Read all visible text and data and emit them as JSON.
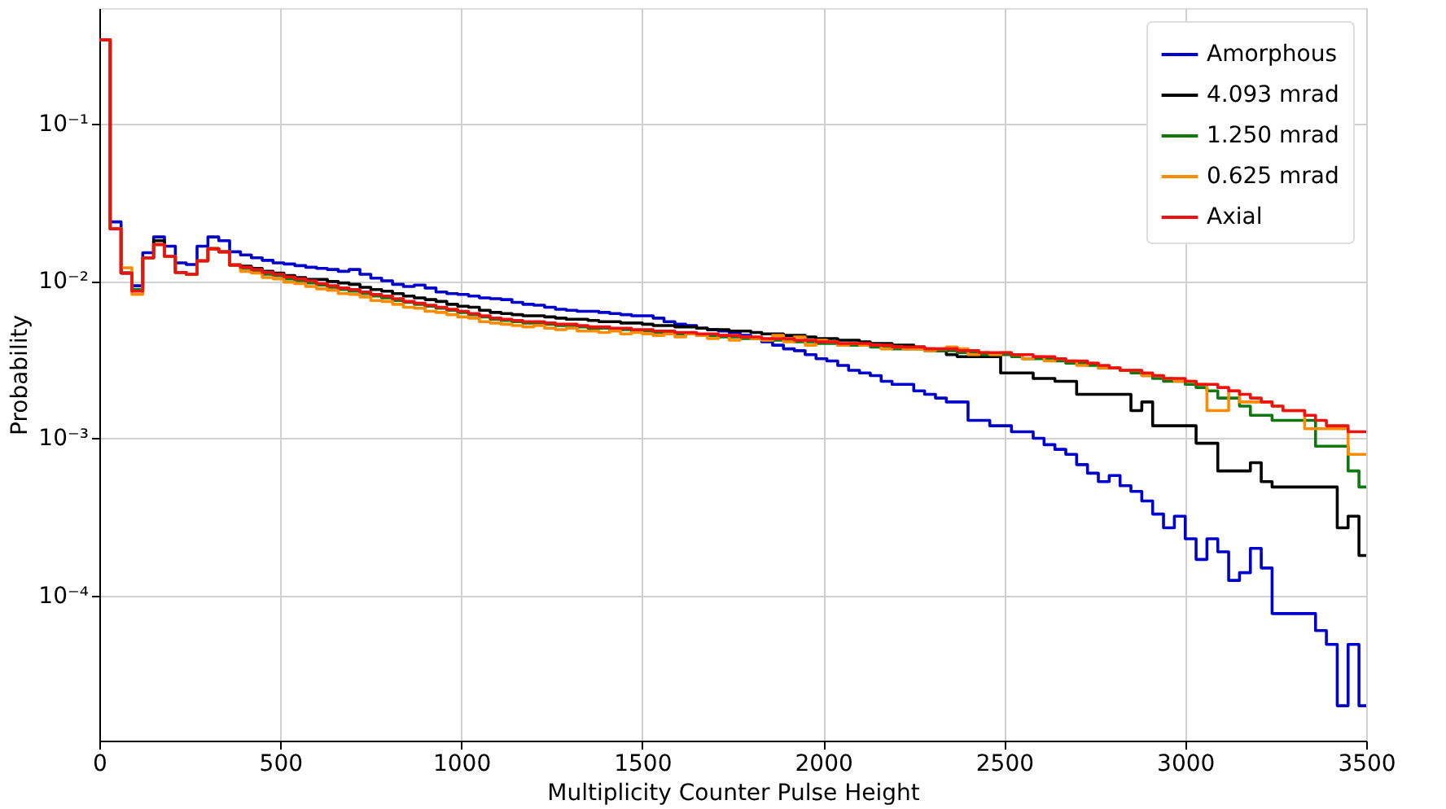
{
  "chart_data": {
    "type": "histogram",
    "xlabel": "Multiplicity Counter Pulse Height",
    "ylabel": "Probability",
    "bins": [
      0,
      30,
      60,
      90,
      120,
      150,
      180,
      210,
      240,
      270,
      300,
      330,
      360,
      390,
      420,
      450,
      480,
      510,
      540,
      570,
      600,
      630,
      660,
      690,
      720,
      750,
      780,
      810,
      840,
      870,
      900,
      930,
      960,
      990,
      1020,
      1050,
      1080,
      1110,
      1140,
      1170,
      1200,
      1230,
      1260,
      1290,
      1320,
      1350,
      1380,
      1410,
      1440,
      1470,
      1500,
      1530,
      1560,
      1590,
      1620,
      1650,
      1680,
      1710,
      1740,
      1770,
      1800,
      1830,
      1860,
      1890,
      1920,
      1950,
      1980,
      2010,
      2040,
      2070,
      2100,
      2130,
      2160,
      2190,
      2220,
      2250,
      2280,
      2310,
      2340,
      2370,
      2400,
      2430,
      2460,
      2490,
      2520,
      2550,
      2580,
      2610,
      2640,
      2670,
      2700,
      2730,
      2760,
      2790,
      2820,
      2850,
      2880,
      2910,
      2940,
      2970,
      3000,
      3030,
      3060,
      3090,
      3120,
      3150,
      3180,
      3210,
      3240,
      3270,
      3300,
      3330,
      3360,
      3390,
      3420,
      3450,
      3480,
      3500
    ],
    "series": [
      {
        "name": "Amorphous",
        "color": "#0000cc",
        "values": [
          0.34,
          0.0237,
          0.0112,
          0.0093,
          0.0151,
          0.019,
          0.0166,
          0.013,
          0.0127,
          0.0166,
          0.019,
          0.018,
          0.0153,
          0.0146,
          0.014,
          0.0135,
          0.013,
          0.0128,
          0.0125,
          0.0122,
          0.012,
          0.0118,
          0.0115,
          0.0118,
          0.011,
          0.0104,
          0.01,
          0.0095,
          0.0092,
          0.0094,
          0.009,
          0.0085,
          0.0083,
          0.0082,
          0.008,
          0.0078,
          0.0077,
          0.0076,
          0.0073,
          0.0071,
          0.007,
          0.0068,
          0.0066,
          0.0065,
          0.0064,
          0.0064,
          0.0063,
          0.0062,
          0.0061,
          0.006,
          0.006,
          0.0058,
          0.0055,
          0.0053,
          0.0052,
          0.005,
          0.0049,
          0.0048,
          0.0047,
          0.0045,
          0.0043,
          0.0041,
          0.0039,
          0.0037,
          0.0036,
          0.0034,
          0.0032,
          0.0031,
          0.0029,
          0.0027,
          0.0026,
          0.0025,
          0.0023,
          0.0022,
          0.0022,
          0.002,
          0.0019,
          0.0018,
          0.0017,
          0.0017,
          0.0013,
          0.0013,
          0.0012,
          0.0012,
          0.0011,
          0.0011,
          0.001,
          0.00091,
          0.00085,
          0.00079,
          0.00068,
          0.0006,
          0.00053,
          0.00058,
          0.0005,
          0.00046,
          0.0004,
          0.00033,
          0.00027,
          0.00032,
          0.00023,
          0.00017,
          0.00023,
          0.00019,
          0.000125,
          0.00014,
          0.0002,
          0.00015,
          7.7e-05,
          7.7e-05,
          7.7e-05,
          7.7e-05,
          6e-05,
          4.9e-05,
          2e-05,
          4.9e-05,
          2e-05
        ]
      },
      {
        "name": "4.093 mrad",
        "color": "#000000",
        "values": [
          0.34,
          0.0214,
          0.0112,
          0.0088,
          0.014,
          0.018,
          0.0143,
          0.0113,
          0.011,
          0.0134,
          0.016,
          0.0153,
          0.0126,
          0.0124,
          0.012,
          0.0115,
          0.0112,
          0.0108,
          0.0105,
          0.0102,
          0.0102,
          0.0099,
          0.0097,
          0.0095,
          0.0091,
          0.0088,
          0.0086,
          0.0083,
          0.008,
          0.0078,
          0.0076,
          0.0074,
          0.0071,
          0.0069,
          0.0068,
          0.0065,
          0.0063,
          0.0062,
          0.0061,
          0.006,
          0.006,
          0.0059,
          0.0058,
          0.0057,
          0.0057,
          0.0056,
          0.0055,
          0.0055,
          0.0054,
          0.0054,
          0.0053,
          0.0052,
          0.0052,
          0.0051,
          0.0051,
          0.005,
          0.0049,
          0.0049,
          0.0048,
          0.0048,
          0.0047,
          0.0046,
          0.0046,
          0.0045,
          0.0045,
          0.0044,
          0.0043,
          0.0043,
          0.0042,
          0.0042,
          0.0041,
          0.004,
          0.004,
          0.0039,
          0.0039,
          0.0038,
          0.0037,
          0.0036,
          0.0034,
          0.0033,
          0.0033,
          0.0033,
          0.0033,
          0.0026,
          0.0026,
          0.0026,
          0.0024,
          0.0024,
          0.0023,
          0.0023,
          0.0019,
          0.0019,
          0.0019,
          0.0019,
          0.0019,
          0.0015,
          0.0017,
          0.0012,
          0.0012,
          0.0012,
          0.0012,
          0.00093,
          0.00093,
          0.00062,
          0.00062,
          0.00062,
          0.0007,
          0.00053,
          0.00049,
          0.00049,
          0.00049,
          0.00049,
          0.00049,
          0.00049,
          0.00027,
          0.00032,
          0.00018
        ]
      },
      {
        "name": "1.250 mrad",
        "color": "#117711",
        "values": [
          0.34,
          0.0214,
          0.0112,
          0.0088,
          0.014,
          0.017,
          0.0143,
          0.0113,
          0.011,
          0.0134,
          0.016,
          0.0153,
          0.0126,
          0.012,
          0.0116,
          0.011,
          0.0108,
          0.0103,
          0.01,
          0.0097,
          0.0094,
          0.0091,
          0.0088,
          0.0086,
          0.0083,
          0.008,
          0.0078,
          0.0075,
          0.0073,
          0.0071,
          0.0069,
          0.0067,
          0.0065,
          0.0063,
          0.0061,
          0.0059,
          0.0057,
          0.0056,
          0.0055,
          0.0054,
          0.0054,
          0.0053,
          0.0052,
          0.0052,
          0.0051,
          0.005,
          0.005,
          0.0049,
          0.0049,
          0.0048,
          0.0048,
          0.0047,
          0.0047,
          0.0046,
          0.0046,
          0.0045,
          0.0045,
          0.0044,
          0.0044,
          0.0043,
          0.0043,
          0.0042,
          0.0042,
          0.0042,
          0.0041,
          0.0041,
          0.004,
          0.004,
          0.0039,
          0.0039,
          0.0039,
          0.0038,
          0.0038,
          0.0037,
          0.0037,
          0.0037,
          0.0036,
          0.0036,
          0.0036,
          0.0035,
          0.0035,
          0.0034,
          0.0034,
          0.0034,
          0.0033,
          0.0032,
          0.0032,
          0.0032,
          0.0031,
          0.003,
          0.003,
          0.0029,
          0.0028,
          0.0028,
          0.0027,
          0.0026,
          0.0025,
          0.0024,
          0.0023,
          0.0023,
          0.0022,
          0.0021,
          0.002,
          0.0018,
          0.0018,
          0.0016,
          0.0014,
          0.0014,
          0.0013,
          0.0013,
          0.0013,
          0.0013,
          0.00089,
          0.00089,
          0.00089,
          0.00062,
          0.00049
        ]
      },
      {
        "name": "0.625 mrad",
        "color": "#ff8c00",
        "values": [
          0.34,
          0.0214,
          0.0121,
          0.0082,
          0.014,
          0.017,
          0.0143,
          0.0113,
          0.011,
          0.0134,
          0.016,
          0.0153,
          0.0126,
          0.0115,
          0.0112,
          0.0105,
          0.0103,
          0.0098,
          0.0096,
          0.0092,
          0.0089,
          0.0087,
          0.0083,
          0.0082,
          0.0079,
          0.0075,
          0.0074,
          0.0071,
          0.0068,
          0.0067,
          0.0064,
          0.0063,
          0.0061,
          0.0059,
          0.0058,
          0.0055,
          0.0054,
          0.0053,
          0.0052,
          0.0051,
          0.0052,
          0.005,
          0.0049,
          0.005,
          0.0048,
          0.0048,
          0.0047,
          0.0048,
          0.0046,
          0.0047,
          0.0046,
          0.0045,
          0.0046,
          0.0044,
          0.0046,
          0.0045,
          0.0043,
          0.0045,
          0.0042,
          0.0044,
          0.0043,
          0.0042,
          0.0045,
          0.0041,
          0.0044,
          0.0039,
          0.0042,
          0.0041,
          0.0039,
          0.004,
          0.0039,
          0.0039,
          0.0037,
          0.0038,
          0.0037,
          0.0037,
          0.0036,
          0.0037,
          0.0038,
          0.0037,
          0.0034,
          0.0035,
          0.0034,
          0.0035,
          0.0034,
          0.0032,
          0.0033,
          0.0031,
          0.0032,
          0.0031,
          0.0029,
          0.003,
          0.0028,
          0.0028,
          0.0027,
          0.0027,
          0.0025,
          0.0025,
          0.0024,
          0.0023,
          0.0023,
          0.0022,
          0.0015,
          0.0015,
          0.002,
          0.0017,
          0.0017,
          0.0017,
          0.0016,
          0.0015,
          0.0015,
          0.00115,
          0.00115,
          0.00115,
          0.00115,
          0.00079,
          0.00079
        ]
      },
      {
        "name": "Axial",
        "color": "#ee1111",
        "values": [
          0.34,
          0.0214,
          0.0112,
          0.0086,
          0.014,
          0.017,
          0.0143,
          0.0113,
          0.011,
          0.0134,
          0.016,
          0.0153,
          0.0126,
          0.0122,
          0.0118,
          0.0113,
          0.011,
          0.0106,
          0.0103,
          0.01,
          0.0096,
          0.0093,
          0.009,
          0.0088,
          0.0085,
          0.0082,
          0.008,
          0.0077,
          0.0074,
          0.0072,
          0.007,
          0.0068,
          0.0066,
          0.0064,
          0.0062,
          0.006,
          0.0058,
          0.0057,
          0.0056,
          0.0055,
          0.0055,
          0.0054,
          0.0053,
          0.0053,
          0.0052,
          0.0051,
          0.0051,
          0.005,
          0.005,
          0.0049,
          0.0049,
          0.0048,
          0.0048,
          0.0047,
          0.0047,
          0.0046,
          0.0046,
          0.0045,
          0.0045,
          0.0044,
          0.0044,
          0.0043,
          0.0043,
          0.0043,
          0.0042,
          0.0042,
          0.0041,
          0.0041,
          0.004,
          0.004,
          0.004,
          0.0039,
          0.0039,
          0.0038,
          0.0038,
          0.0038,
          0.0037,
          0.0037,
          0.0037,
          0.0036,
          0.0036,
          0.0035,
          0.0035,
          0.0035,
          0.0034,
          0.0034,
          0.0033,
          0.0033,
          0.0032,
          0.0031,
          0.0031,
          0.003,
          0.0029,
          0.0028,
          0.0027,
          0.0027,
          0.0026,
          0.0025,
          0.0024,
          0.0024,
          0.0023,
          0.0022,
          0.0022,
          0.0021,
          0.002,
          0.0019,
          0.0018,
          0.0017,
          0.0016,
          0.0015,
          0.0015,
          0.0014,
          0.0013,
          0.0012,
          0.0012,
          0.0011,
          0.0011
        ]
      }
    ],
    "xlim": [
      0,
      3500
    ],
    "xticks": [
      0,
      500,
      1000,
      1500,
      2000,
      2500,
      3000,
      3500
    ],
    "ylim": [
      1.2e-05,
      0.54
    ],
    "log": "y",
    "yticks": [
      {
        "value": 0.1,
        "label": "10⁻¹"
      },
      {
        "value": 0.01,
        "label": "10⁻²"
      },
      {
        "value": 0.001,
        "label": "10⁻³"
      },
      {
        "value": 0.0001,
        "label": "10⁻⁴"
      }
    ],
    "grid": true,
    "legend": "top right"
  }
}
